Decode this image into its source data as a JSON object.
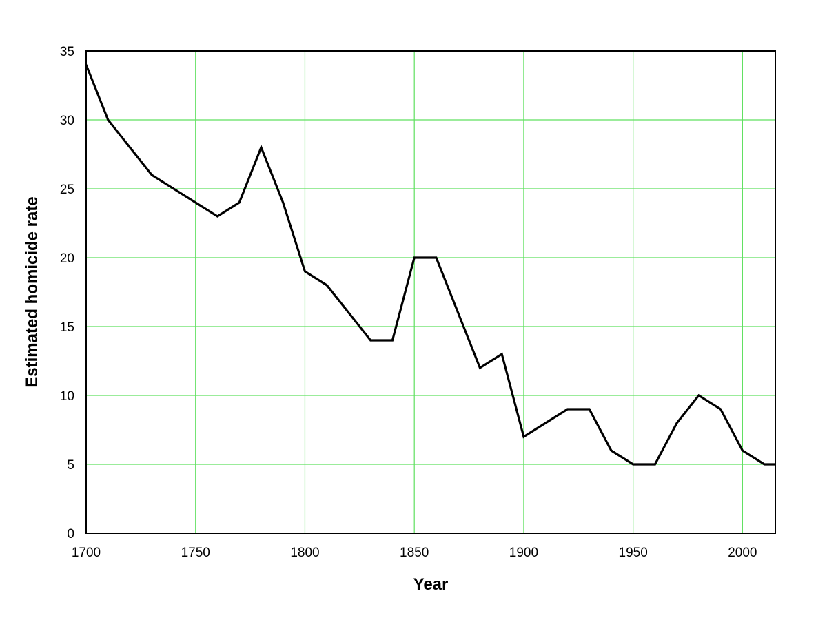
{
  "chart_data": {
    "type": "line",
    "title": "",
    "xlabel": "Year",
    "ylabel": "Estimated homicide rate",
    "xlim": [
      1700,
      2015
    ],
    "ylim": [
      0,
      35
    ],
    "x_ticks": [
      1700,
      1750,
      1800,
      1850,
      1900,
      1950,
      2000
    ],
    "y_ticks": [
      0,
      5,
      10,
      15,
      20,
      25,
      30,
      35
    ],
    "grid": true,
    "colors": {
      "grid": "#5fe05f",
      "line": "#000000",
      "frame": "#000000",
      "background": "#ffffff"
    },
    "series": [
      {
        "x": [
          1700,
          1710,
          1730,
          1760,
          1770,
          1780,
          1790,
          1800,
          1810,
          1830,
          1840,
          1850,
          1860,
          1880,
          1890,
          1900,
          1920,
          1930,
          1940,
          1950,
          1960,
          1970,
          1980,
          1990,
          2000,
          2010,
          2015
        ],
        "y": [
          34,
          30,
          26,
          23,
          24,
          28,
          24,
          19,
          18,
          14,
          14,
          20,
          20,
          12,
          13,
          7,
          9,
          9,
          6,
          5,
          5,
          8,
          10,
          9,
          6,
          5,
          5
        ]
      }
    ]
  }
}
